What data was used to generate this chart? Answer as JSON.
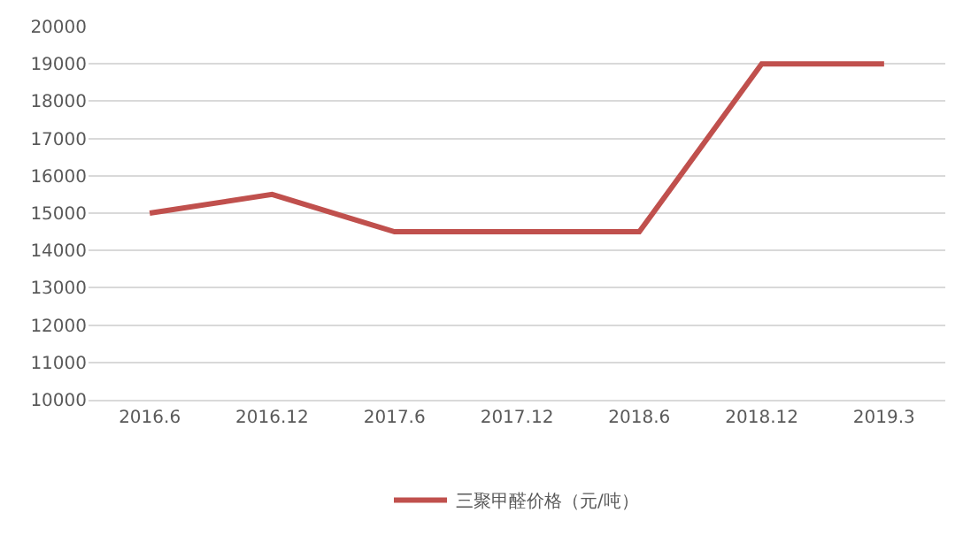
{
  "chart_data": {
    "type": "line",
    "categories": [
      "2016.6",
      "2016.12",
      "2017.6",
      "2017.12",
      "2018.6",
      "2018.12",
      "2019.3"
    ],
    "series": [
      {
        "name": "三聚甲醛价格（元/吨）",
        "color": "#c0504d",
        "values": [
          15000,
          15500,
          14500,
          14500,
          14500,
          19000,
          19000
        ]
      }
    ],
    "ylim": [
      10000,
      20000
    ],
    "yticks": [
      10000,
      11000,
      12000,
      13000,
      14000,
      15000,
      16000,
      17000,
      18000,
      19000,
      20000
    ],
    "grid": "y",
    "legend": "bottom",
    "marker": "none",
    "line_style": "solid"
  }
}
